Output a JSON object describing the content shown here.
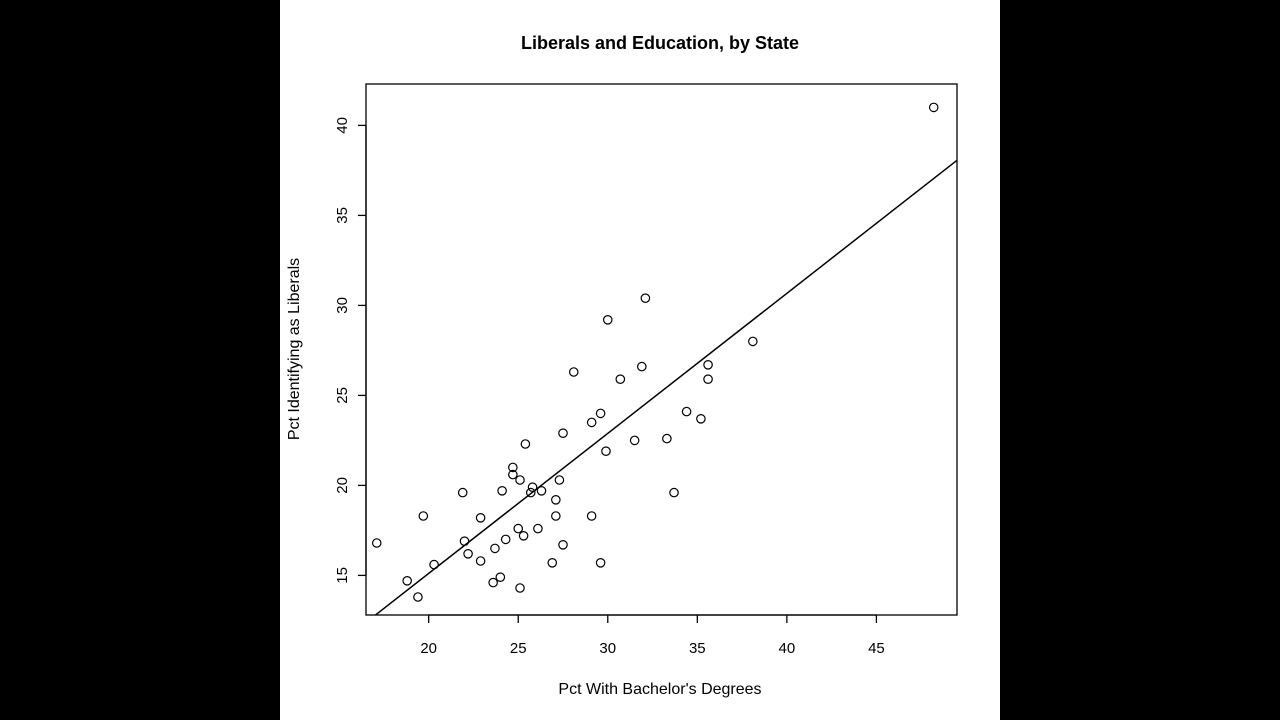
{
  "chart_data": {
    "type": "scatter",
    "title": "Liberals and Education, by State",
    "xlabel": "Pct With Bachelor's Degrees",
    "ylabel": "Pct Identifying as Liberals",
    "xlim": [
      16.5,
      49.5
    ],
    "ylim": [
      12.8,
      42.3
    ],
    "xticks": [
      20,
      25,
      30,
      35,
      40,
      45
    ],
    "yticks": [
      15,
      20,
      25,
      30,
      35,
      40
    ],
    "grid": false,
    "legend": "none",
    "regression_line": {
      "intercept": -0.45,
      "slope": 0.778
    },
    "points": [
      {
        "x": 17.1,
        "y": 16.8
      },
      {
        "x": 18.8,
        "y": 14.7
      },
      {
        "x": 19.4,
        "y": 13.8
      },
      {
        "x": 19.7,
        "y": 18.3
      },
      {
        "x": 20.3,
        "y": 15.6
      },
      {
        "x": 21.9,
        "y": 19.6
      },
      {
        "x": 22.0,
        "y": 16.9
      },
      {
        "x": 22.2,
        "y": 16.2
      },
      {
        "x": 22.9,
        "y": 18.2
      },
      {
        "x": 22.9,
        "y": 15.8
      },
      {
        "x": 23.6,
        "y": 14.6
      },
      {
        "x": 23.7,
        "y": 16.5
      },
      {
        "x": 24.0,
        "y": 14.9
      },
      {
        "x": 24.1,
        "y": 19.7
      },
      {
        "x": 24.3,
        "y": 17.0
      },
      {
        "x": 24.7,
        "y": 21.0
      },
      {
        "x": 24.7,
        "y": 20.6
      },
      {
        "x": 25.0,
        "y": 17.6
      },
      {
        "x": 25.1,
        "y": 20.3
      },
      {
        "x": 25.1,
        "y": 14.3
      },
      {
        "x": 25.3,
        "y": 17.2
      },
      {
        "x": 25.4,
        "y": 22.3
      },
      {
        "x": 25.7,
        "y": 19.6
      },
      {
        "x": 25.8,
        "y": 19.9
      },
      {
        "x": 26.1,
        "y": 17.6
      },
      {
        "x": 26.3,
        "y": 19.7
      },
      {
        "x": 26.9,
        "y": 15.7
      },
      {
        "x": 27.1,
        "y": 19.2
      },
      {
        "x": 27.1,
        "y": 18.3
      },
      {
        "x": 27.3,
        "y": 20.3
      },
      {
        "x": 27.5,
        "y": 22.9
      },
      {
        "x": 27.5,
        "y": 16.7
      },
      {
        "x": 28.1,
        "y": 26.3
      },
      {
        "x": 29.1,
        "y": 23.5
      },
      {
        "x": 29.1,
        "y": 18.3
      },
      {
        "x": 29.6,
        "y": 24.0
      },
      {
        "x": 29.6,
        "y": 15.7
      },
      {
        "x": 29.9,
        "y": 21.9
      },
      {
        "x": 30.0,
        "y": 29.2
      },
      {
        "x": 30.7,
        "y": 25.9
      },
      {
        "x": 31.5,
        "y": 22.5
      },
      {
        "x": 31.9,
        "y": 26.6
      },
      {
        "x": 32.1,
        "y": 30.4
      },
      {
        "x": 33.3,
        "y": 22.6
      },
      {
        "x": 33.7,
        "y": 19.6
      },
      {
        "x": 34.4,
        "y": 24.1
      },
      {
        "x": 35.2,
        "y": 23.7
      },
      {
        "x": 35.6,
        "y": 26.7
      },
      {
        "x": 35.6,
        "y": 25.9
      },
      {
        "x": 38.1,
        "y": 28.0
      },
      {
        "x": 48.2,
        "y": 41.0
      }
    ]
  }
}
